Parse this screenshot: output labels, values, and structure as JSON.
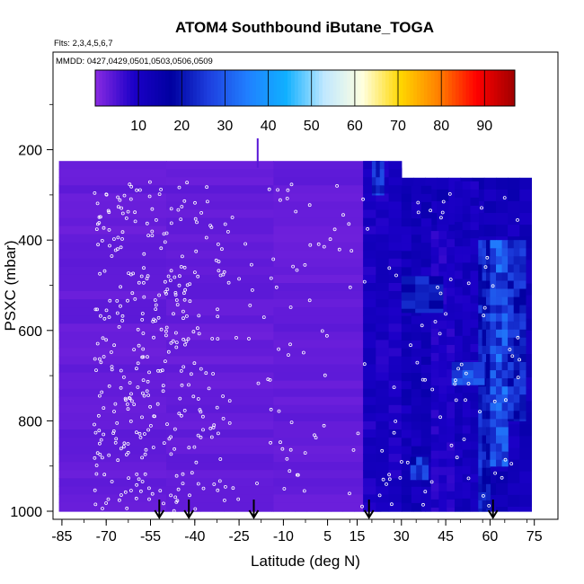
{
  "chart_data": {
    "type": "heatmap",
    "title": "ATOM4 Southbound iButane_TOGA",
    "flights_label": "Flts: 2,3,4,5,6,7",
    "dates_label": "MMDD: 0427,0429,0501,0503,0506,0509",
    "xlabel": "Latitude (deg N)",
    "ylabel": "PSXC (mbar)",
    "xlim": [
      -88,
      83
    ],
    "ylim": [
      1010,
      0
    ],
    "x_ticks": [
      -85,
      -70,
      -55,
      -40,
      -25,
      -10,
      5,
      15,
      30,
      45,
      60,
      75
    ],
    "y_ticks": [
      200,
      400,
      600,
      800,
      1000
    ],
    "colorbar": {
      "min": 0,
      "max": 97,
      "ticks": [
        10,
        20,
        30,
        40,
        50,
        60,
        70,
        80,
        90
      ],
      "colors": [
        "#8a2be2",
        "#1c00c8",
        "#0000a0",
        "#1e40e0",
        "#2080ff",
        "#10b0ff",
        "#c0e8ff",
        "#ffffe0",
        "#ffd700",
        "#ff8000",
        "#ff0000",
        "#a00000"
      ]
    },
    "arrow_latitudes": [
      -52,
      -42,
      -20,
      19,
      61
    ],
    "background_value": 3,
    "regions": [
      {
        "lat": [
          -86,
          23
        ],
        "p": [
          225,
          1000
        ],
        "value": 3
      },
      {
        "lat": [
          17,
          30
        ],
        "p": [
          225,
          1000
        ],
        "value": 10
      },
      {
        "lat": [
          20,
          24
        ],
        "p": [
          225,
          300
        ],
        "value": 25
      },
      {
        "lat": [
          30,
          40
        ],
        "p": [
          280,
          1000
        ],
        "value": 12
      },
      {
        "lat": [
          40,
          48
        ],
        "p": [
          380,
          1000
        ],
        "value": 9
      },
      {
        "lat": [
          48,
          56
        ],
        "p": [
          270,
          1000
        ],
        "value": 11
      },
      {
        "lat": [
          56,
          60
        ],
        "p": [
          400,
          1000
        ],
        "value": 22
      },
      {
        "lat": [
          60,
          66
        ],
        "p": [
          400,
          900
        ],
        "value": 28
      },
      {
        "lat": [
          66,
          72
        ],
        "p": [
          400,
          800
        ],
        "value": 22
      },
      {
        "lat": [
          47,
          58
        ],
        "p": [
          670,
          720
        ],
        "value": 26
      },
      {
        "lat": [
          30,
          44
        ],
        "p": [
          480,
          560
        ],
        "value": 20
      },
      {
        "lat": [
          33,
          39
        ],
        "p": [
          880,
          930
        ],
        "value": 24
      }
    ]
  }
}
